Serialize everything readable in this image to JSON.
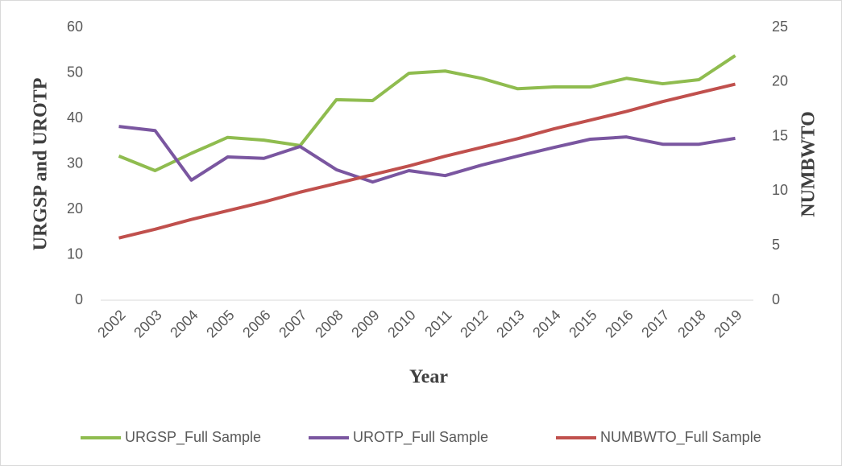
{
  "chart_data": {
    "type": "line",
    "xlabel": "Year",
    "ylabel": "URGSP and UROTP",
    "y2label": "NUMBWTO",
    "categories": [
      "2002",
      "2003",
      "2004",
      "2005",
      "2006",
      "2007",
      "2008",
      "2009",
      "2010",
      "2011",
      "2012",
      "2013",
      "2014",
      "2015",
      "2016",
      "2017",
      "2018",
      "2019"
    ],
    "series": [
      {
        "name": "URGSP_Full Sample",
        "color": "#8fbc4f",
        "values": [
          31.7,
          28.5,
          32.3,
          35.8,
          35.2,
          34.0,
          44.1,
          43.9,
          49.9,
          50.4,
          48.8,
          46.5,
          46.9,
          46.9,
          48.8,
          47.6,
          48.5,
          53.8
        ]
      },
      {
        "name": "UROTP_Full Sample",
        "color": "#7a56a0",
        "values": [
          38.2,
          37.3,
          26.4,
          31.5,
          31.2,
          33.8,
          28.7,
          26.0,
          28.5,
          27.4,
          29.7,
          31.7,
          33.6,
          35.4,
          35.9,
          34.3,
          34.3,
          35.6
        ]
      },
      {
        "name": "NUMBWTO_Full Sample",
        "color": "#c0504d",
        "axis": "y2",
        "values": [
          5.7,
          6.5,
          7.4,
          8.2,
          9.0,
          9.9,
          10.7,
          11.5,
          12.3,
          13.2,
          14.0,
          14.8,
          15.7,
          16.5,
          17.3,
          18.2,
          19.0,
          19.8
        ]
      }
    ],
    "ylim": [
      0,
      60
    ],
    "yticks": [
      0,
      10,
      20,
      30,
      40,
      50,
      60
    ],
    "y2lim": [
      0,
      25
    ],
    "y2ticks": [
      0,
      5,
      10,
      15,
      20,
      25
    ],
    "grid": false,
    "legend": "bottom"
  }
}
